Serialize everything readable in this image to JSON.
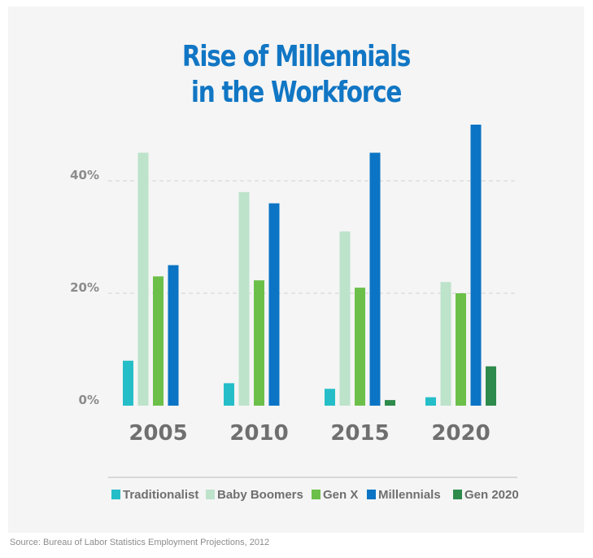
{
  "chart_data": {
    "type": "bar",
    "title_lines": [
      "Rise of Millennials",
      "in the Workforce"
    ],
    "categories": [
      "2005",
      "2010",
      "2015",
      "2020"
    ],
    "series": [
      {
        "name": "Traditionalist",
        "color": "#25bec8",
        "values": [
          8,
          4,
          3,
          1.5
        ]
      },
      {
        "name": "Baby Boomers",
        "color": "#bde3cb",
        "values": [
          45,
          38,
          31,
          22
        ]
      },
      {
        "name": "Gen X",
        "color": "#6cc04a",
        "values": [
          23,
          22.3,
          21,
          20
        ]
      },
      {
        "name": "Millennials",
        "color": "#0b74c4",
        "values": [
          25,
          36,
          45,
          50
        ]
      },
      {
        "name": "Gen 2020",
        "color": "#2e8b4b",
        "values": [
          null,
          null,
          1,
          7
        ]
      }
    ],
    "yticks": [
      {
        "value": 0,
        "label": "0%"
      },
      {
        "value": 20,
        "label": "20%"
      },
      {
        "value": 40,
        "label": "40%"
      }
    ],
    "ylim": [
      0,
      50
    ],
    "grid": "dashed horizontal at 20% and 40%",
    "legend_position": "bottom"
  },
  "source": "Source: Bureau of Labor Statistics Employment Projections, 2012"
}
